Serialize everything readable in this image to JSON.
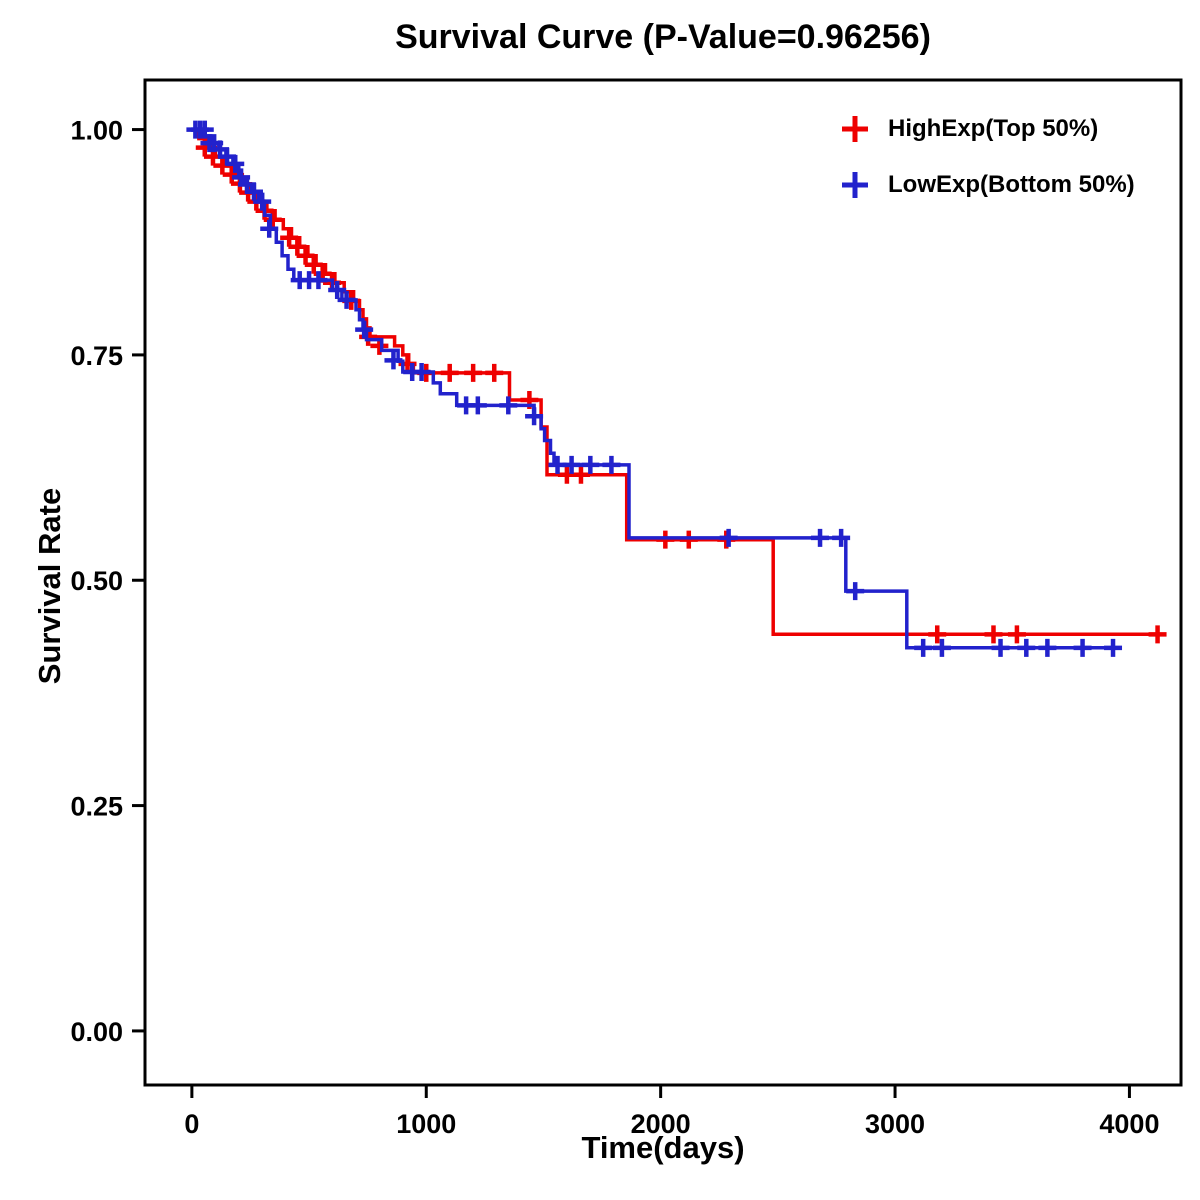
{
  "chart_data": {
    "type": "line",
    "subtype": "kaplan-meier-step",
    "title": "Survival Curve (P-Value=0.96256)",
    "p_value": 0.96256,
    "xlabel": "Time(days)",
    "ylabel": "Survival Rate",
    "xlim": [
      -200,
      4220
    ],
    "ylim": [
      -0.06,
      1.055
    ],
    "xticks": [
      0,
      1000,
      2000,
      3000,
      4000
    ],
    "yticks": [
      0.0,
      0.25,
      0.5,
      0.75,
      1.0
    ],
    "grid": false,
    "legend_position": "top-right-inside",
    "series": [
      {
        "name": "HighExp(Top 50%)",
        "color": "#EE0000",
        "steps": [
          [
            0,
            1.0
          ],
          [
            30,
            0.99
          ],
          [
            65,
            0.98
          ],
          [
            100,
            0.97
          ],
          [
            140,
            0.96
          ],
          [
            180,
            0.95
          ],
          [
            215,
            0.94
          ],
          [
            250,
            0.93
          ],
          [
            285,
            0.92
          ],
          [
            320,
            0.91
          ],
          [
            355,
            0.9
          ],
          [
            390,
            0.89
          ],
          [
            425,
            0.88
          ],
          [
            460,
            0.87
          ],
          [
            495,
            0.86
          ],
          [
            530,
            0.85
          ],
          [
            570,
            0.84
          ],
          [
            610,
            0.83
          ],
          [
            650,
            0.82
          ],
          [
            690,
            0.81
          ],
          [
            715,
            0.8
          ],
          [
            730,
            0.79
          ],
          [
            745,
            0.78
          ],
          [
            760,
            0.77
          ],
          [
            865,
            0.76
          ],
          [
            900,
            0.75
          ],
          [
            925,
            0.74
          ],
          [
            945,
            0.73
          ],
          [
            1355,
            0.7
          ],
          [
            1490,
            0.67
          ],
          [
            1515,
            0.617
          ],
          [
            1855,
            0.545
          ],
          [
            2480,
            0.44
          ],
          [
            4150,
            0.44
          ]
        ],
        "censors": [
          [
            55,
            0.98
          ],
          [
            90,
            0.97
          ],
          [
            130,
            0.96
          ],
          [
            170,
            0.95
          ],
          [
            205,
            0.94
          ],
          [
            240,
            0.93
          ],
          [
            275,
            0.92
          ],
          [
            310,
            0.91
          ],
          [
            345,
            0.9
          ],
          [
            415,
            0.88
          ],
          [
            450,
            0.87
          ],
          [
            485,
            0.86
          ],
          [
            520,
            0.85
          ],
          [
            558,
            0.84
          ],
          [
            598,
            0.83
          ],
          [
            680,
            0.81
          ],
          [
            752,
            0.77
          ],
          [
            800,
            0.76
          ],
          [
            920,
            0.74
          ],
          [
            1000,
            0.73
          ],
          [
            1100,
            0.73
          ],
          [
            1200,
            0.73
          ],
          [
            1290,
            0.73
          ],
          [
            1440,
            0.7
          ],
          [
            1600,
            0.617
          ],
          [
            1660,
            0.617
          ],
          [
            2020,
            0.545
          ],
          [
            2120,
            0.545
          ],
          [
            2280,
            0.545
          ],
          [
            3180,
            0.44
          ],
          [
            3420,
            0.44
          ],
          [
            3520,
            0.44
          ],
          [
            4120,
            0.44
          ]
        ]
      },
      {
        "name": "LowExp(Bottom 50%)",
        "color": "#2222CC",
        "steps": [
          [
            0,
            1.0
          ],
          [
            40,
            0.993
          ],
          [
            80,
            0.985
          ],
          [
            115,
            0.978
          ],
          [
            145,
            0.97
          ],
          [
            175,
            0.962
          ],
          [
            200,
            0.947
          ],
          [
            225,
            0.939
          ],
          [
            255,
            0.931
          ],
          [
            285,
            0.92
          ],
          [
            310,
            0.905
          ],
          [
            335,
            0.89
          ],
          [
            360,
            0.875
          ],
          [
            385,
            0.86
          ],
          [
            410,
            0.845
          ],
          [
            435,
            0.833
          ],
          [
            600,
            0.822
          ],
          [
            640,
            0.811
          ],
          [
            700,
            0.8
          ],
          [
            715,
            0.789
          ],
          [
            730,
            0.778
          ],
          [
            745,
            0.767
          ],
          [
            810,
            0.755
          ],
          [
            880,
            0.743
          ],
          [
            900,
            0.731
          ],
          [
            1030,
            0.719
          ],
          [
            1060,
            0.707
          ],
          [
            1130,
            0.694
          ],
          [
            1460,
            0.682
          ],
          [
            1490,
            0.668
          ],
          [
            1505,
            0.655
          ],
          [
            1530,
            0.641
          ],
          [
            1545,
            0.628
          ],
          [
            1865,
            0.547
          ],
          [
            2790,
            0.488
          ],
          [
            3050,
            0.425
          ],
          [
            3940,
            0.425
          ]
        ],
        "censors": [
          [
            15,
            1.0
          ],
          [
            35,
            1.0
          ],
          [
            55,
            1.0
          ],
          [
            75,
            0.985
          ],
          [
            95,
            0.985
          ],
          [
            120,
            0.978
          ],
          [
            150,
            0.97
          ],
          [
            185,
            0.962
          ],
          [
            210,
            0.947
          ],
          [
            235,
            0.939
          ],
          [
            265,
            0.931
          ],
          [
            300,
            0.92
          ],
          [
            330,
            0.89
          ],
          [
            460,
            0.833
          ],
          [
            500,
            0.833
          ],
          [
            540,
            0.833
          ],
          [
            620,
            0.822
          ],
          [
            660,
            0.811
          ],
          [
            735,
            0.778
          ],
          [
            860,
            0.744
          ],
          [
            940,
            0.731
          ],
          [
            980,
            0.731
          ],
          [
            1170,
            0.694
          ],
          [
            1220,
            0.694
          ],
          [
            1350,
            0.694
          ],
          [
            1460,
            0.682
          ],
          [
            1560,
            0.628
          ],
          [
            1620,
            0.628
          ],
          [
            1700,
            0.628
          ],
          [
            1790,
            0.628
          ],
          [
            2290,
            0.547
          ],
          [
            2680,
            0.547
          ],
          [
            2770,
            0.547
          ],
          [
            2830,
            0.488
          ],
          [
            3120,
            0.425
          ],
          [
            3200,
            0.425
          ],
          [
            3450,
            0.425
          ],
          [
            3560,
            0.425
          ],
          [
            3650,
            0.425
          ],
          [
            3800,
            0.425
          ],
          [
            3930,
            0.425
          ]
        ]
      }
    ]
  }
}
